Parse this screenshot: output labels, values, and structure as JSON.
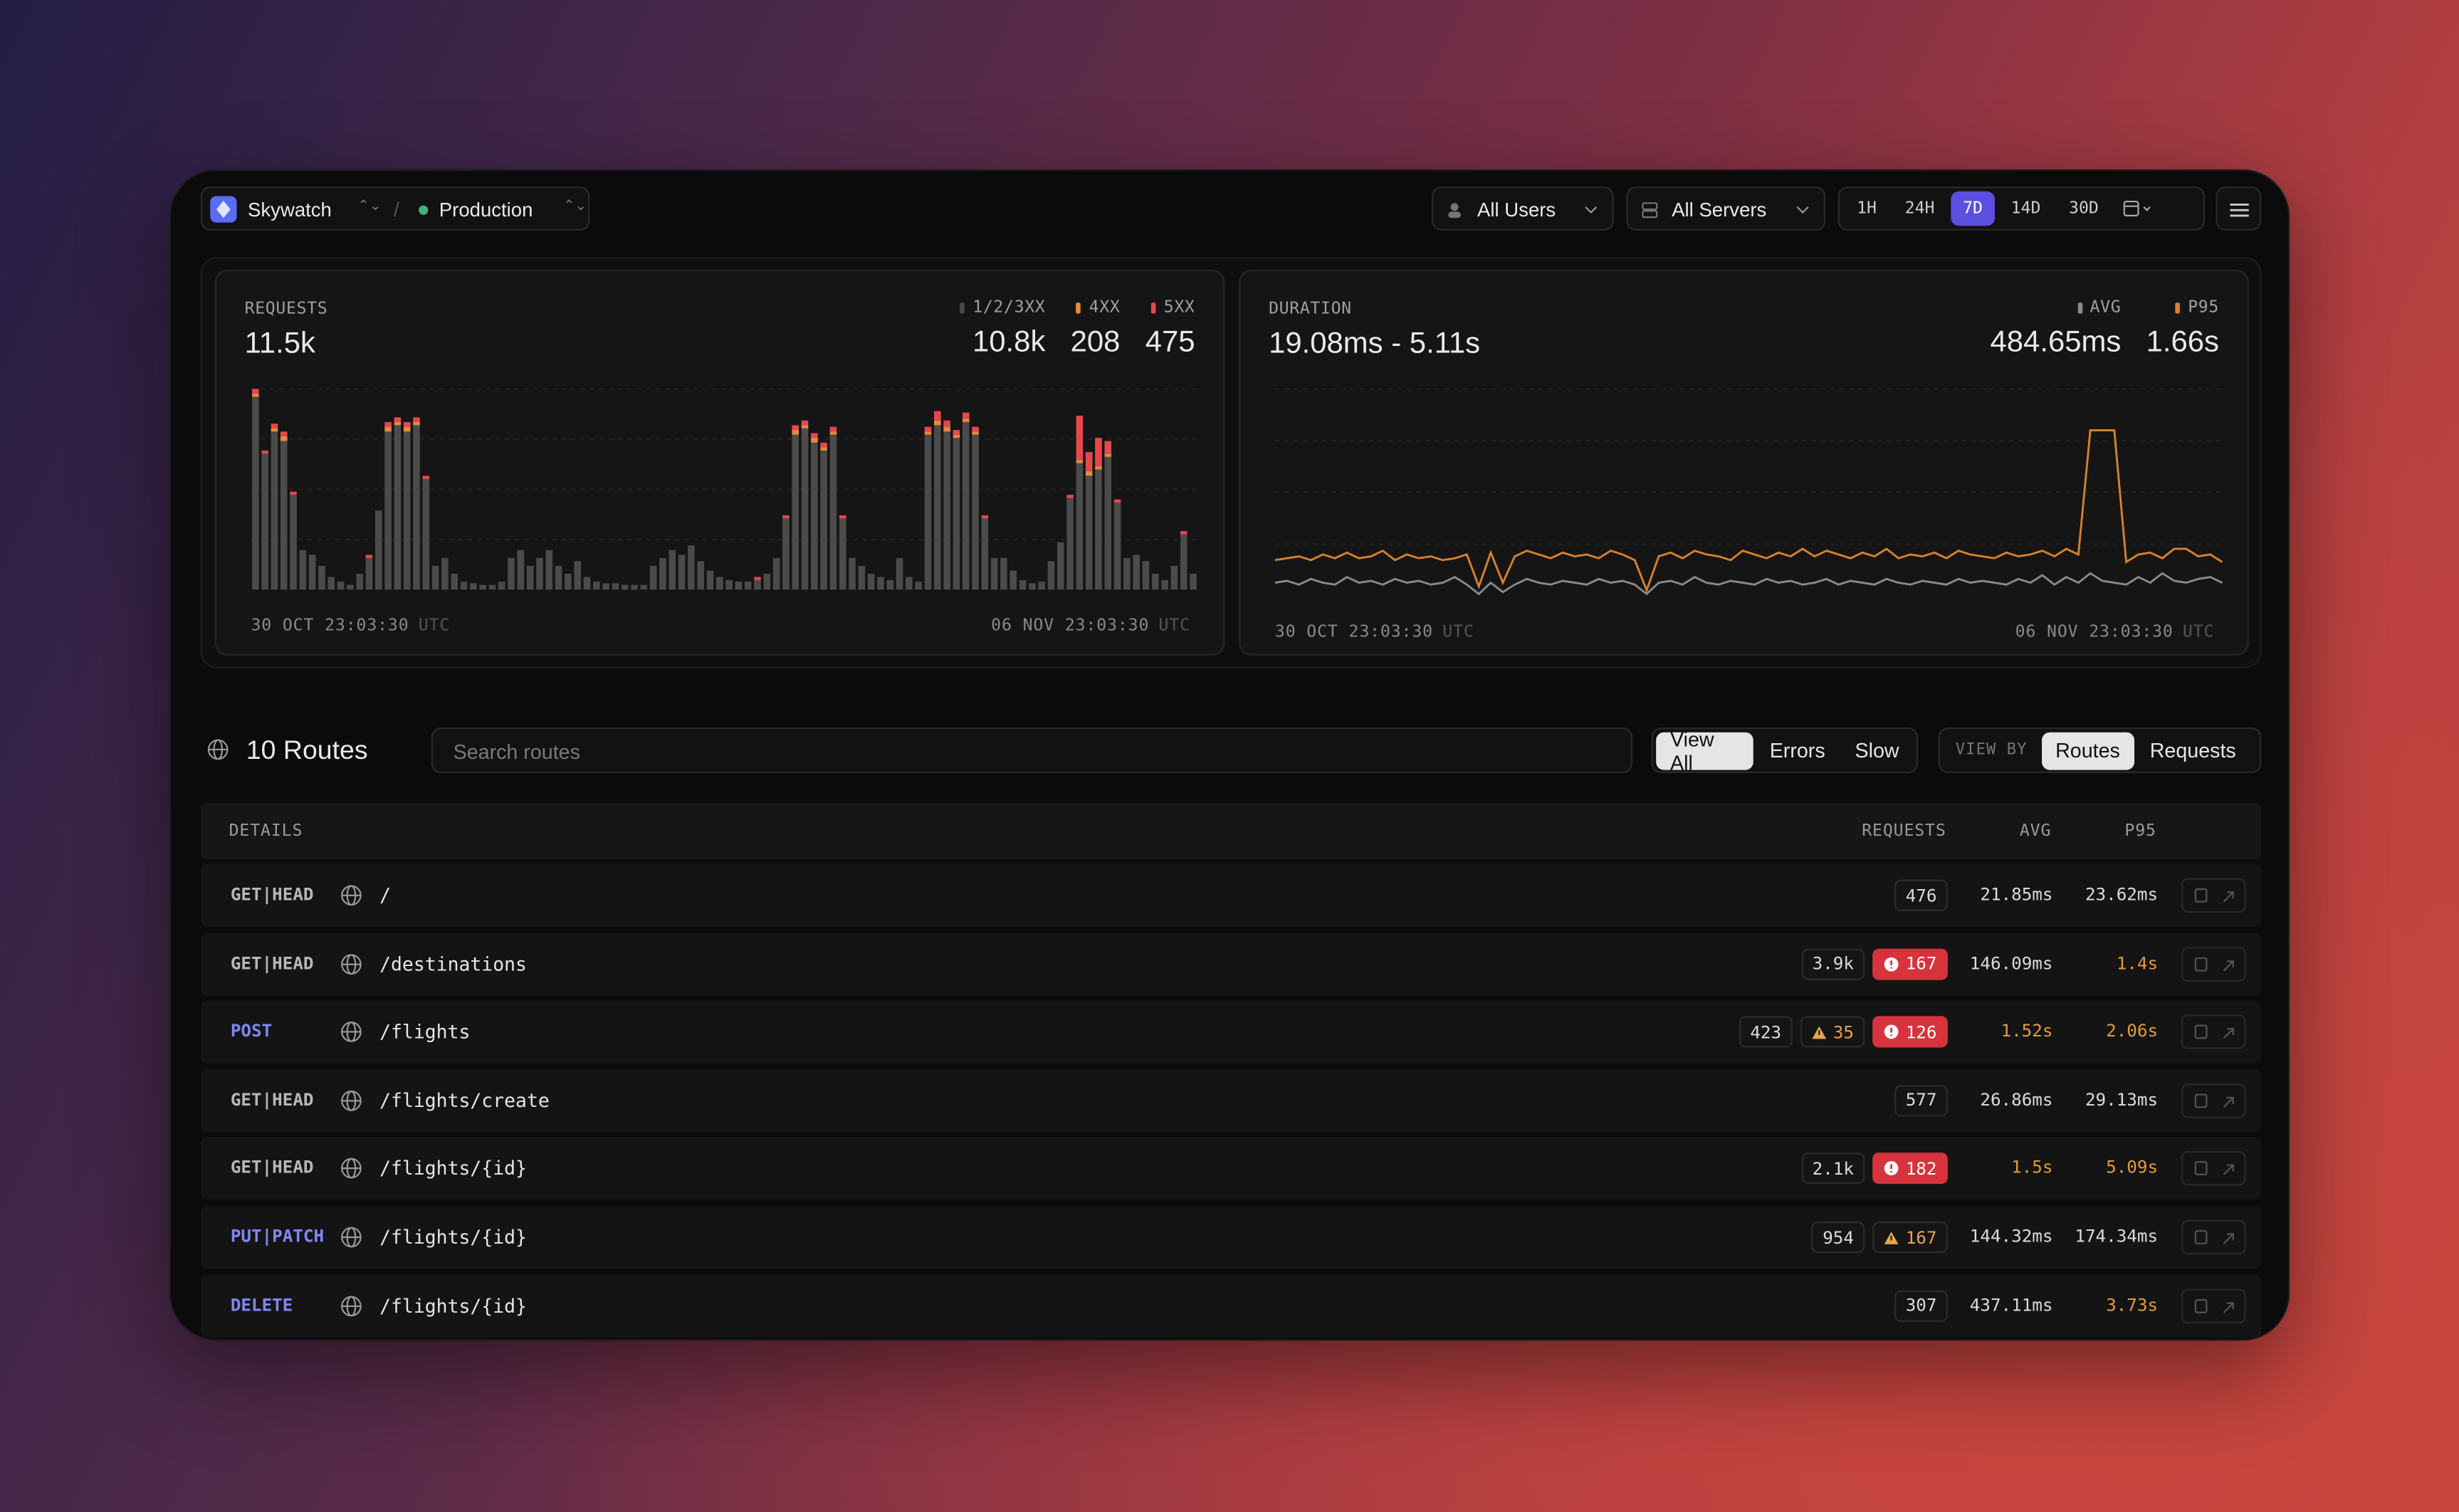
{
  "header": {
    "app": "Skywatch",
    "separator": "/",
    "environment": "Production",
    "users_filter": "All Users",
    "servers_filter": "All Servers",
    "ranges": [
      "1H",
      "24H",
      "7D",
      "14D",
      "30D"
    ],
    "active_range": 2
  },
  "requests_card": {
    "label": "REQUESTS",
    "total": "11.5k",
    "totals": [
      "10.8k",
      "208",
      "475"
    ],
    "start": "30 OCT 23:03:30",
    "end": "06 NOV 23:03:30",
    "tz": "UTC"
  },
  "duration_card": {
    "label": "DURATION",
    "range": "19.08ms - 5.11s",
    "totals": [
      "484.65ms",
      "1.66s"
    ],
    "start": "30 OCT 23:03:30",
    "end": "06 NOV 23:03:30",
    "tz": "UTC"
  },
  "chart_data": [
    {
      "type": "bar",
      "stacked": true,
      "series": [
        {
          "name": "1/2/3XX",
          "color": "#4b4b4b",
          "values": [
            122,
            86,
            100,
            94,
            60,
            25,
            22,
            15,
            8,
            5,
            3,
            10,
            20,
            50,
            100,
            104,
            100,
            104,
            70,
            15,
            20,
            10,
            5,
            4,
            3,
            3,
            5,
            20,
            25,
            15,
            20,
            25,
            15,
            10,
            18,
            8,
            5,
            4,
            4,
            3,
            3,
            3,
            15,
            20,
            25,
            22,
            28,
            18,
            12,
            8,
            6,
            5,
            5,
            6,
            10,
            20,
            45,
            98,
            102,
            93,
            88,
            98,
            45,
            20,
            15,
            10,
            8,
            6,
            20,
            8,
            5,
            98,
            104,
            100,
            96,
            106,
            98,
            45,
            20,
            20,
            12,
            6,
            4,
            5,
            18,
            30,
            58,
            80,
            72,
            76,
            84,
            55,
            20,
            22,
            18,
            10,
            6,
            15,
            35,
            10
          ]
        },
        {
          "name": "4XX",
          "color": "#e58a3a",
          "values": [
            2,
            0,
            2,
            3,
            0,
            0,
            0,
            0,
            0,
            0,
            0,
            0,
            0,
            0,
            3,
            2,
            3,
            2,
            0,
            0,
            0,
            0,
            0,
            0,
            0,
            0,
            0,
            0,
            0,
            0,
            0,
            0,
            0,
            0,
            0,
            0,
            0,
            0,
            0,
            0,
            0,
            0,
            0,
            0,
            0,
            0,
            0,
            0,
            0,
            0,
            0,
            0,
            0,
            0,
            0,
            0,
            0,
            3,
            2,
            3,
            2,
            2,
            0,
            0,
            0,
            0,
            0,
            0,
            0,
            0,
            0,
            2,
            3,
            3,
            2,
            2,
            2,
            0,
            0,
            0,
            0,
            0,
            0,
            0,
            0,
            0,
            0,
            2,
            3,
            2,
            2,
            0,
            0,
            0,
            0,
            0,
            0,
            0,
            0,
            0
          ]
        },
        {
          "name": "5XX",
          "color": "#e5484d",
          "values": [
            3,
            2,
            3,
            3,
            2,
            0,
            0,
            0,
            0,
            0,
            0,
            0,
            2,
            0,
            3,
            3,
            3,
            3,
            2,
            0,
            0,
            0,
            0,
            0,
            0,
            0,
            0,
            0,
            0,
            0,
            0,
            0,
            0,
            0,
            0,
            0,
            0,
            0,
            0,
            0,
            0,
            0,
            0,
            0,
            0,
            0,
            0,
            0,
            0,
            0,
            0,
            0,
            0,
            2,
            0,
            0,
            2,
            3,
            3,
            3,
            3,
            3,
            2,
            0,
            0,
            0,
            0,
            0,
            0,
            0,
            0,
            3,
            6,
            4,
            3,
            4,
            3,
            2,
            0,
            0,
            0,
            0,
            0,
            0,
            0,
            0,
            2,
            28,
            12,
            18,
            8,
            2,
            0,
            0,
            0,
            0,
            0,
            0,
            2,
            0
          ]
        }
      ]
    },
    {
      "type": "line",
      "series": [
        {
          "name": "AVG",
          "color": "#8a8a8a",
          "values": [
            350,
            400,
            300,
            450,
            350,
            300,
            500,
            350,
            400,
            300,
            450,
            350,
            400,
            300,
            350,
            500,
            300,
            50,
            350,
            100,
            300,
            450,
            350,
            300,
            400,
            350,
            300,
            450,
            350,
            400,
            300,
            50,
            350,
            400,
            300,
            500,
            350,
            300,
            400,
            350,
            300,
            450,
            350,
            400,
            300,
            350,
            450,
            300,
            400,
            350,
            300,
            450,
            350,
            300,
            400,
            350,
            300,
            450,
            350,
            400,
            350,
            300,
            450,
            350,
            550,
            300,
            500,
            350,
            600,
            400,
            350,
            300,
            500,
            350,
            600,
            400,
            350,
            450,
            500,
            350
          ]
        },
        {
          "name": "P95",
          "color": "#d9822b",
          "values": [
            950,
            1000,
            1050,
            950,
            1100,
            1000,
            1150,
            1000,
            1050,
            1200,
            950,
            1100,
            1000,
            1050,
            950,
            1000,
            1100,
            250,
            1150,
            350,
            1050,
            1200,
            1100,
            1000,
            1150,
            1050,
            1100,
            1000,
            1200,
            1100,
            950,
            150,
            1050,
            1150,
            1000,
            1200,
            1100,
            1050,
            950,
            1200,
            1100,
            1000,
            1150,
            1050,
            1250,
            1050,
            1200,
            1100,
            1000,
            1150,
            1050,
            1250,
            1000,
            1100,
            1050,
            1150,
            1000,
            1200,
            1100,
            1050,
            1000,
            1150,
            1050,
            1100,
            1200,
            1050,
            1250,
            1100,
            4400,
            4400,
            4400,
            900,
            1100,
            1150,
            1000,
            1250,
            1250,
            1050,
            1100,
            900
          ]
        }
      ]
    }
  ],
  "routes": {
    "count_label": "10 Routes",
    "search_placeholder": "Search routes",
    "filters": [
      "View All",
      "Errors",
      "Slow"
    ],
    "active_filter": 0,
    "view_by_label": "VIEW BY",
    "view_by": [
      "Routes",
      "Requests"
    ],
    "active_view": 0
  },
  "table": {
    "columns": [
      "DETAILS",
      "REQUESTS",
      "AVG",
      "P95"
    ],
    "rows": [
      {
        "method": "GET|HEAD",
        "method_color": "#b8b8b8",
        "path": "/",
        "requests": "476",
        "avg": "21.85ms",
        "p95": "23.62ms",
        "avg_slow": false,
        "p95_slow": false
      },
      {
        "method": "GET|HEAD",
        "method_color": "#b8b8b8",
        "path": "/destinations",
        "requests": "3.9k",
        "errors": "167",
        "avg": "146.09ms",
        "p95": "1.4s",
        "avg_slow": false,
        "p95_slow": true
      },
      {
        "method": "POST",
        "method_color": "#8187f5",
        "path": "/flights",
        "requests": "423",
        "warnings": "35",
        "errors": "126",
        "avg": "1.52s",
        "p95": "2.06s",
        "avg_slow": true,
        "p95_slow": true
      },
      {
        "method": "GET|HEAD",
        "method_color": "#b8b8b8",
        "path": "/flights/create",
        "requests": "577",
        "avg": "26.86ms",
        "p95": "29.13ms",
        "avg_slow": false,
        "p95_slow": false
      },
      {
        "method": "GET|HEAD",
        "method_color": "#b8b8b8",
        "path": "/flights/{id}",
        "requests": "2.1k",
        "errors": "182",
        "avg": "1.5s",
        "p95": "5.09s",
        "avg_slow": true,
        "p95_slow": true
      },
      {
        "method": "PUT|PATCH",
        "method_color": "#8187f5",
        "path": "/flights/{id}",
        "requests": "954",
        "warnings": "167",
        "avg": "144.32ms",
        "p95": "174.34ms",
        "avg_slow": false,
        "p95_slow": false
      },
      {
        "method": "DELETE",
        "method_color": "#8187f5",
        "path": "/flights/{id}",
        "requests": "307",
        "avg": "437.11ms",
        "p95": "3.73s",
        "avg_slow": false,
        "p95_slow": true
      }
    ]
  }
}
